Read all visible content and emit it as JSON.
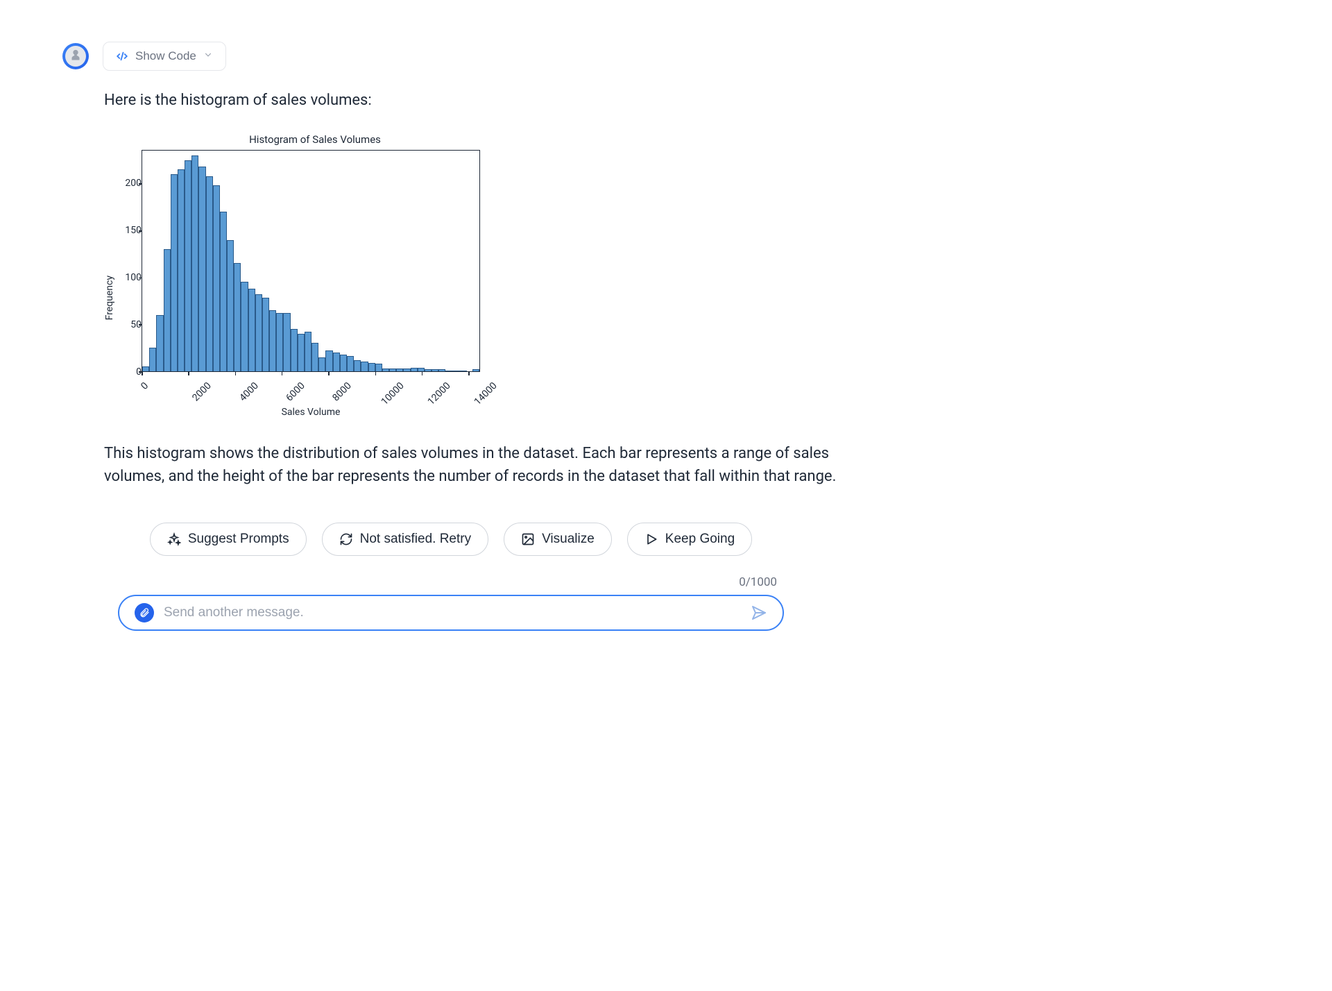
{
  "header": {
    "show_code_label": "Show Code"
  },
  "message": {
    "intro": "Here is the histogram of sales volumes:",
    "description": "This histogram shows the distribution of sales volumes in the dataset. Each bar represents a range of sales volumes, and the height of the bar represents the number of records in the dataset that fall within that range."
  },
  "chart": {
    "type": "histogram",
    "title": "Histogram of Sales Volumes",
    "xlabel": "Sales Volume",
    "ylabel": "Frequency",
    "ylim": [
      0,
      235
    ],
    "yticks": [
      0,
      50,
      100,
      150,
      200
    ],
    "xlim": [
      0,
      14500
    ],
    "xticks": [
      0,
      2000,
      4000,
      6000,
      8000,
      10000,
      12000,
      14000
    ],
    "bar_fill": "#5a9bd4",
    "bar_edge": "#2a5a8a",
    "background_color": "#ffffff",
    "border_color": "#1f2937",
    "title_fontsize": 15,
    "label_fontsize": 14,
    "tick_fontsize": 14,
    "values": [
      5,
      25,
      60,
      130,
      210,
      215,
      225,
      230,
      218,
      208,
      198,
      170,
      140,
      115,
      95,
      88,
      82,
      78,
      65,
      62,
      62,
      45,
      40,
      42,
      30,
      15,
      22,
      20,
      18,
      16,
      12,
      10,
      9,
      8,
      3,
      3,
      3,
      3,
      4,
      4,
      2,
      2,
      2,
      1,
      1,
      1,
      0,
      2
    ]
  },
  "actions": {
    "suggest": "Suggest Prompts",
    "retry": "Not satisfied. Retry",
    "visualize": "Visualize",
    "keep_going": "Keep Going"
  },
  "input": {
    "placeholder": "Send another message.",
    "counter": "0/1000"
  }
}
